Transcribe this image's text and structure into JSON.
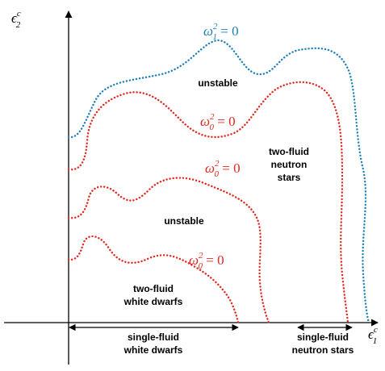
{
  "axes": {
    "y_label": {
      "symbol": "ϵ",
      "sup": "c",
      "sub": "2"
    },
    "x_label": {
      "symbol": "ϵ",
      "sup": "c",
      "sub": "1"
    }
  },
  "curves": [
    {
      "symbol": "ω",
      "sup": "2",
      "sub": "1",
      "rest": " = 0"
    },
    {
      "symbol": "ω",
      "sup": "2",
      "sub": "0",
      "rest": " = 0"
    },
    {
      "symbol": "ω",
      "sup": "2",
      "sub": "0",
      "rest": " = 0"
    },
    {
      "symbol": "ω",
      "sup": "2",
      "sub": "0",
      "rest": " = 0"
    }
  ],
  "regions": [
    {
      "lines": [
        "unstable"
      ]
    },
    {
      "lines": [
        "two-fluid",
        "neutron",
        "stars"
      ]
    },
    {
      "lines": [
        "unstable"
      ]
    },
    {
      "lines": [
        "two-fluid",
        "white dwarfs"
      ]
    }
  ],
  "ranges": [
    {
      "lines": [
        "single-fluid",
        "white dwarfs"
      ]
    },
    {
      "lines": [
        "single-fluid",
        "neutron stars"
      ]
    }
  ]
}
